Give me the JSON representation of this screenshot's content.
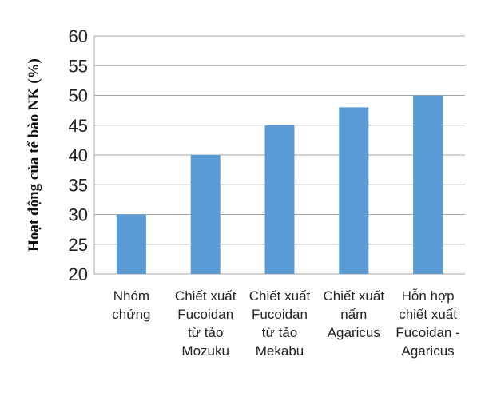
{
  "chart_data": {
    "type": "bar",
    "categories": [
      [
        "Nhóm",
        "chứng"
      ],
      [
        "Chiết xuất",
        "Fucoidan",
        "từ tảo",
        "Mozuku"
      ],
      [
        "Chiết xuất",
        "Fucoidan",
        "từ tảo",
        "Mekabu"
      ],
      [
        "Chiết xuất",
        "nấm",
        "Agaricus"
      ],
      [
        "Hỗn hợp",
        "chiết xuất",
        "Fucoidan -",
        "Agaricus"
      ]
    ],
    "values": [
      30,
      40,
      45,
      48,
      50
    ],
    "ylabel": "Hoạt động của tế bào NK (%)",
    "ylim": [
      20,
      60
    ],
    "yticks": [
      20,
      25,
      30,
      35,
      40,
      45,
      50,
      55,
      60
    ],
    "grid": true,
    "bar_color": "#5b9bd5",
    "grid_color": "#a6a6a6"
  }
}
